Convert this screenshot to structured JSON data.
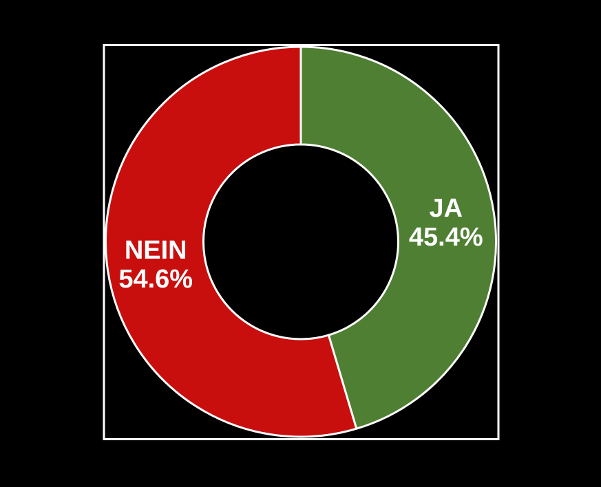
{
  "background_color": "#000000",
  "chart_data": {
    "type": "pie",
    "subtype": "donut",
    "title": "",
    "segments": [
      {
        "label": "JA",
        "value": 45.4,
        "pct_text": "45.4%",
        "color": "#4f7f32"
      },
      {
        "label": "NEIN",
        "value": 54.6,
        "pct_text": "54.6%",
        "color": "#c90e0e"
      }
    ],
    "start_angle_deg_from_top": 0,
    "direction": "clockwise",
    "donut_hole_ratio": 0.5,
    "labels_position": "inside",
    "label_color": "#ffffff",
    "edge_color": "#ffffff",
    "frame_visible": true,
    "frame_color": "#ffffff",
    "legend": "none"
  }
}
